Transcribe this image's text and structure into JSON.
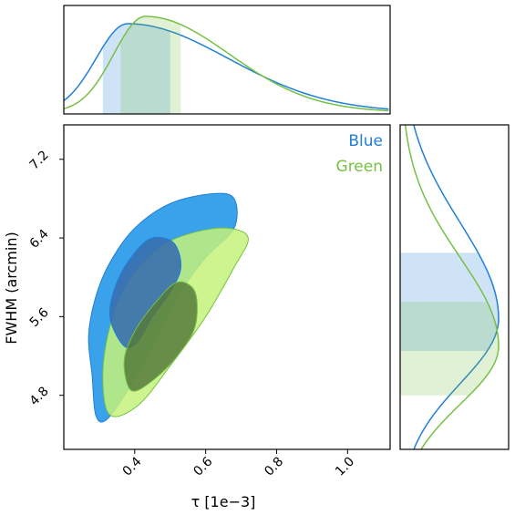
{
  "chart_data": {
    "type": "corner",
    "xlabel": "τ [1e−3]",
    "ylabel": "FWHM (arcmin)",
    "xlim": [
      0.2,
      1.12
    ],
    "ylim": [
      4.25,
      7.55
    ],
    "xticks": [
      "0.4",
      "0.6",
      "0.8",
      "1.0"
    ],
    "yticks": [
      "4.8",
      "5.6",
      "6.4",
      "7.2"
    ],
    "legend_position": "top-right",
    "series": [
      {
        "name": "Blue",
        "color": "#1f7fd6",
        "fill_outer": "#39a2ea",
        "fill_inner": "#3a6fae",
        "tau_peak": 0.38,
        "tau_interval": [
          0.31,
          0.5
        ],
        "fwhm_peak": 5.58,
        "fwhm_interval": [
          5.25,
          6.25
        ],
        "contour68": [
          [
            0.37,
            5.3
          ],
          [
            0.33,
            5.6
          ],
          [
            0.35,
            5.95
          ],
          [
            0.4,
            6.25
          ],
          [
            0.45,
            6.4
          ],
          [
            0.51,
            6.35
          ],
          [
            0.53,
            6.1
          ],
          [
            0.5,
            5.85
          ],
          [
            0.45,
            5.6
          ],
          [
            0.41,
            5.35
          ]
        ],
        "contour95": [
          [
            0.29,
            4.6
          ],
          [
            0.28,
            5.0
          ],
          [
            0.27,
            5.4
          ],
          [
            0.29,
            5.8
          ],
          [
            0.33,
            6.15
          ],
          [
            0.4,
            6.5
          ],
          [
            0.5,
            6.75
          ],
          [
            0.62,
            6.85
          ],
          [
            0.68,
            6.8
          ],
          [
            0.68,
            6.5
          ],
          [
            0.6,
            6.2
          ],
          [
            0.52,
            5.8
          ],
          [
            0.45,
            5.3
          ],
          [
            0.38,
            4.85
          ],
          [
            0.32,
            4.55
          ]
        ]
      },
      {
        "name": "Green",
        "color": "#76c043",
        "fill_outer": "#c4f27a",
        "fill_inner": "#557a3c",
        "tau_peak": 0.43,
        "tau_interval": [
          0.36,
          0.53
        ],
        "fwhm_peak": 5.3,
        "fwhm_interval": [
          4.8,
          5.75
        ],
        "contour68": [
          [
            0.39,
            4.85
          ],
          [
            0.37,
            5.15
          ],
          [
            0.4,
            5.45
          ],
          [
            0.46,
            5.75
          ],
          [
            0.52,
            5.95
          ],
          [
            0.57,
            5.85
          ],
          [
            0.57,
            5.5
          ],
          [
            0.52,
            5.2
          ],
          [
            0.45,
            4.95
          ]
        ],
        "contour95": [
          [
            0.33,
            4.6
          ],
          [
            0.31,
            5.0
          ],
          [
            0.33,
            5.5
          ],
          [
            0.38,
            5.95
          ],
          [
            0.47,
            6.3
          ],
          [
            0.56,
            6.45
          ],
          [
            0.66,
            6.5
          ],
          [
            0.72,
            6.4
          ],
          [
            0.68,
            6.1
          ],
          [
            0.6,
            5.6
          ],
          [
            0.5,
            5.1
          ],
          [
            0.41,
            4.7
          ]
        ]
      }
    ]
  }
}
